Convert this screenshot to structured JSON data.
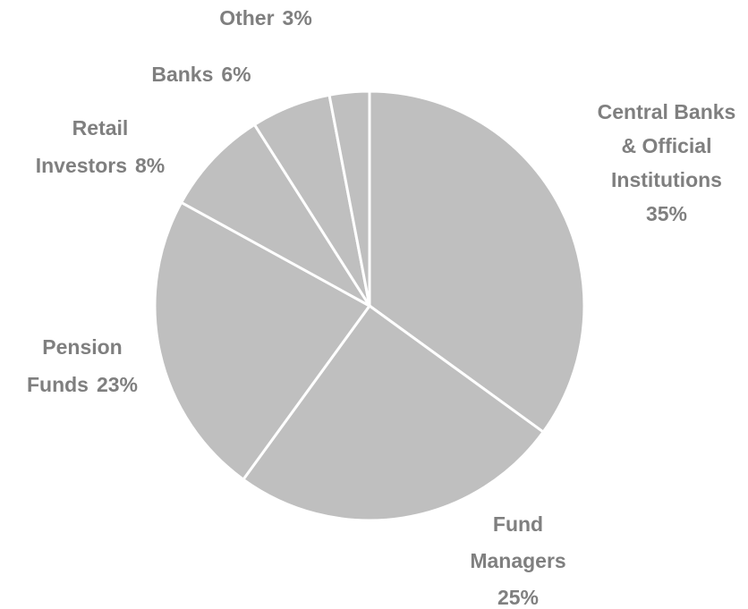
{
  "chart_data": {
    "type": "pie",
    "categories": [
      "Central Banks & Official Institutions",
      "Fund Managers",
      "Pension Funds",
      "Retail Investors",
      "Banks",
      "Other"
    ],
    "values": [
      35,
      25,
      23,
      8,
      6,
      3
    ],
    "value_labels": [
      "35%",
      "25%",
      "23%",
      "8%",
      "6%",
      "3%"
    ],
    "color": "#bfbfbf"
  }
}
